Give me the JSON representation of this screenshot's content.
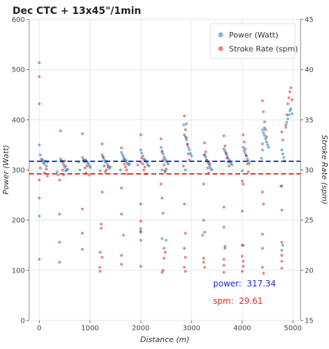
{
  "chart_data": {
    "type": "scatter",
    "title": "Dec CTC + 13x45\"/1min",
    "xlabel": "Distance (m)",
    "ylabel": "Power (Watt)",
    "y2label": "Stroke Rate (spm)",
    "xlim": [
      -200,
      5150
    ],
    "ylim": [
      0,
      600
    ],
    "y2lim": [
      15,
      45
    ],
    "xticks": [
      0,
      1000,
      2000,
      3000,
      4000,
      5000
    ],
    "yticks": [
      0,
      100,
      200,
      300,
      400,
      500,
      600
    ],
    "y2ticks": [
      15,
      20,
      25,
      30,
      35,
      40,
      45
    ],
    "grid": true,
    "legend_position": "top-right",
    "legend": [
      {
        "label": "Power (Watt)",
        "color": "#1f77b4"
      },
      {
        "label": "Stroke Rate (spm)",
        "color": "#d62728"
      }
    ],
    "hlines": [
      {
        "axis": "power",
        "value": 317.34,
        "color": "#1515d6",
        "style": "dashed"
      },
      {
        "axis": "stroke_rate",
        "value": 29.61,
        "color": "#e61414",
        "style": "dashed"
      }
    ],
    "annotations": [
      {
        "text": "power:  317.34",
        "color": "#2222ee"
      },
      {
        "text": "spm:  29.61",
        "color": "#ee2222"
      }
    ],
    "series": [
      {
        "name": "Power (Watt)",
        "axis": "left",
        "color": "#1f77b4",
        "points": [
          [
            0,
            350
          ],
          [
            0,
            208
          ],
          [
            0,
            122
          ],
          [
            20,
            330
          ],
          [
            40,
            322
          ],
          [
            60,
            318
          ],
          [
            80,
            315
          ],
          [
            100,
            312
          ],
          [
            120,
            318
          ],
          [
            140,
            308
          ],
          [
            160,
            316
          ],
          [
            420,
            322
          ],
          [
            440,
            318
          ],
          [
            460,
            315
          ],
          [
            480,
            310
          ],
          [
            500,
            305
          ],
          [
            520,
            298
          ],
          [
            540,
            300
          ],
          [
            560,
            302
          ],
          [
            350,
            296
          ],
          [
            370,
            290
          ],
          [
            850,
            325
          ],
          [
            870,
            320
          ],
          [
            890,
            316
          ],
          [
            910,
            320
          ],
          [
            930,
            318
          ],
          [
            950,
            315
          ],
          [
            970,
            312
          ],
          [
            990,
            308
          ],
          [
            1010,
            305
          ],
          [
            800,
            300
          ],
          [
            780,
            316
          ],
          [
            1240,
            330
          ],
          [
            1260,
            325
          ],
          [
            1280,
            320
          ],
          [
            1300,
            316
          ],
          [
            1320,
            318
          ],
          [
            1340,
            312
          ],
          [
            1360,
            308
          ],
          [
            1380,
            303
          ],
          [
            1400,
            306
          ],
          [
            1200,
            298
          ],
          [
            1620,
            335
          ],
          [
            1640,
            330
          ],
          [
            1660,
            326
          ],
          [
            1680,
            322
          ],
          [
            1700,
            320
          ],
          [
            1720,
            317
          ],
          [
            1740,
            313
          ],
          [
            1760,
            310
          ],
          [
            1780,
            312
          ],
          [
            1600,
            300
          ],
          [
            2000,
            340
          ],
          [
            2020,
            334
          ],
          [
            2040,
            328
          ],
          [
            2060,
            322
          ],
          [
            2080,
            320
          ],
          [
            2100,
            318
          ],
          [
            2120,
            315
          ],
          [
            2140,
            310
          ],
          [
            2160,
            308
          ],
          [
            2000,
            183
          ],
          [
            2000,
            178
          ],
          [
            1940,
            310
          ],
          [
            2400,
            345
          ],
          [
            2420,
            338
          ],
          [
            2440,
            332
          ],
          [
            2460,
            326
          ],
          [
            2480,
            322
          ],
          [
            2500,
            318
          ],
          [
            2520,
            315
          ],
          [
            2540,
            312
          ],
          [
            2420,
            300
          ],
          [
            2500,
            160
          ],
          [
            2420,
            163
          ],
          [
            2480,
            298
          ],
          [
            2860,
            370
          ],
          [
            2880,
            366
          ],
          [
            2900,
            360
          ],
          [
            2920,
            352
          ],
          [
            2940,
            345
          ],
          [
            2960,
            340
          ],
          [
            2980,
            333
          ],
          [
            3000,
            328
          ],
          [
            2850,
            390
          ],
          [
            2900,
            392
          ],
          [
            2880,
            300
          ],
          [
            3260,
            330
          ],
          [
            3280,
            326
          ],
          [
            3300,
            320
          ],
          [
            3320,
            316
          ],
          [
            3340,
            313
          ],
          [
            3360,
            308
          ],
          [
            3380,
            303
          ],
          [
            3400,
            300
          ],
          [
            3220,
            170
          ],
          [
            3250,
            330
          ],
          [
            3640,
            342
          ],
          [
            3660,
            338
          ],
          [
            3680,
            333
          ],
          [
            3700,
            329
          ],
          [
            3720,
            324
          ],
          [
            3740,
            320
          ],
          [
            3760,
            316
          ],
          [
            3780,
            313
          ],
          [
            3800,
            310
          ],
          [
            3660,
            148
          ],
          [
            4020,
            345
          ],
          [
            4040,
            338
          ],
          [
            4060,
            333
          ],
          [
            4080,
            329
          ],
          [
            4100,
            322
          ],
          [
            4120,
            318
          ],
          [
            4140,
            313
          ],
          [
            4000,
            298
          ],
          [
            4020,
            150
          ],
          [
            4400,
            380
          ],
          [
            4420,
            374
          ],
          [
            4440,
            369
          ],
          [
            4460,
            362
          ],
          [
            4480,
            356
          ],
          [
            4500,
            350
          ],
          [
            4520,
            345
          ],
          [
            4400,
            340
          ],
          [
            4380,
            323
          ],
          [
            4440,
            384
          ],
          [
            4780,
            340
          ],
          [
            4800,
            332
          ],
          [
            4820,
            325
          ],
          [
            4840,
            318
          ],
          [
            4860,
            385
          ],
          [
            4880,
            395
          ],
          [
            4900,
            402
          ],
          [
            4920,
            410
          ],
          [
            4940,
            418
          ],
          [
            4960,
            422
          ],
          [
            4980,
            412
          ],
          [
            4760,
            268
          ],
          [
            4800,
            150
          ],
          [
            4780,
            140
          ]
        ]
      },
      {
        "name": "Stroke Rate (spm)",
        "axis": "right",
        "color": "#d62728",
        "points": [
          [
            0,
            40.7
          ],
          [
            0,
            39.3
          ],
          [
            0,
            36.6
          ],
          [
            0,
            29.0
          ],
          [
            0,
            27.2
          ],
          [
            20,
            30.2
          ],
          [
            60,
            31.0
          ],
          [
            100,
            29.7
          ],
          [
            140,
            30.1
          ],
          [
            160,
            29.4
          ],
          [
            420,
            33.9
          ],
          [
            440,
            30.9
          ],
          [
            460,
            30.0
          ],
          [
            480,
            29.5
          ],
          [
            500,
            30.9
          ],
          [
            520,
            30.4
          ],
          [
            400,
            29.0
          ],
          [
            400,
            22.8
          ],
          [
            400,
            20.8
          ],
          [
            400,
            25.6
          ],
          [
            850,
            33.6
          ],
          [
            880,
            31.0
          ],
          [
            900,
            30.2
          ],
          [
            920,
            29.7
          ],
          [
            940,
            30.4
          ],
          [
            980,
            29.5
          ],
          [
            850,
            26.1
          ],
          [
            850,
            23.7
          ],
          [
            850,
            22.1
          ],
          [
            1240,
            32.6
          ],
          [
            1260,
            31.3
          ],
          [
            1280,
            30.4
          ],
          [
            1300,
            29.8
          ],
          [
            1320,
            30.0
          ],
          [
            1360,
            30.3
          ],
          [
            1240,
            27.8
          ],
          [
            1220,
            24.6
          ],
          [
            1220,
            24.2
          ],
          [
            1200,
            21.8
          ],
          [
            1190,
            20.3
          ],
          [
            1200,
            19.9
          ],
          [
            1240,
            21.3
          ],
          [
            1620,
            32.2
          ],
          [
            1660,
            31.0
          ],
          [
            1680,
            30.6
          ],
          [
            1700,
            30.3
          ],
          [
            1720,
            30.0
          ],
          [
            1740,
            29.6
          ],
          [
            1620,
            28.2
          ],
          [
            1620,
            25.6
          ],
          [
            1660,
            23.5
          ],
          [
            1620,
            20.6
          ],
          [
            1620,
            21.5
          ],
          [
            2000,
            33.5
          ],
          [
            2020,
            31.2
          ],
          [
            2040,
            30.6
          ],
          [
            2060,
            30.0
          ],
          [
            2080,
            30.3
          ],
          [
            2100,
            29.6
          ],
          [
            2000,
            30.8
          ],
          [
            2000,
            26.6
          ],
          [
            2000,
            24.9
          ],
          [
            2000,
            23.8
          ],
          [
            2000,
            23.0
          ],
          [
            2000,
            20.4
          ],
          [
            2400,
            33.1
          ],
          [
            2420,
            31.8
          ],
          [
            2440,
            31.0
          ],
          [
            2460,
            30.5
          ],
          [
            2480,
            29.8
          ],
          [
            2500,
            30.1
          ],
          [
            2400,
            28.6
          ],
          [
            2420,
            27.2
          ],
          [
            2440,
            25.7
          ],
          [
            2460,
            22.2
          ],
          [
            2480,
            21.8
          ],
          [
            2460,
            21.2
          ],
          [
            2440,
            20.0
          ],
          [
            2420,
            19.8
          ],
          [
            2860,
            35.4
          ],
          [
            2880,
            34.0
          ],
          [
            2900,
            33.2
          ],
          [
            2920,
            32.5
          ],
          [
            2940,
            31.6
          ],
          [
            2960,
            31.0
          ],
          [
            2840,
            30.4
          ],
          [
            2860,
            26.6
          ],
          [
            2880,
            23.7
          ],
          [
            2860,
            22.2
          ],
          [
            2880,
            21.3
          ],
          [
            2860,
            20.3
          ],
          [
            2880,
            19.9
          ],
          [
            3260,
            32.7
          ],
          [
            3280,
            31.8
          ],
          [
            3300,
            31.0
          ],
          [
            3320,
            30.2
          ],
          [
            3340,
            29.7
          ],
          [
            3360,
            30.6
          ],
          [
            3240,
            28.6
          ],
          [
            3240,
            25.0
          ],
          [
            3260,
            23.8
          ],
          [
            3240,
            21.2
          ],
          [
            3260,
            20.3
          ],
          [
            3240,
            20.8
          ],
          [
            3640,
            33.4
          ],
          [
            3660,
            32.4
          ],
          [
            3680,
            31.7
          ],
          [
            3700,
            31.2
          ],
          [
            3720,
            30.8
          ],
          [
            3740,
            30.4
          ],
          [
            3640,
            26.3
          ],
          [
            3640,
            24.3
          ],
          [
            3660,
            22.2
          ],
          [
            3640,
            21.1
          ],
          [
            3640,
            20.5
          ],
          [
            3640,
            19.8
          ],
          [
            4020,
            33.5
          ],
          [
            4040,
            32.8
          ],
          [
            4060,
            32.1
          ],
          [
            4080,
            31.4
          ],
          [
            4100,
            30.6
          ],
          [
            4120,
            29.8
          ],
          [
            4000,
            28.9
          ],
          [
            4020,
            28.6
          ],
          [
            4000,
            25.9
          ],
          [
            4000,
            22.5
          ],
          [
            4000,
            21.4
          ],
          [
            4020,
            20.9
          ],
          [
            4020,
            20.4
          ],
          [
            4000,
            19.9
          ],
          [
            4400,
            36.9
          ],
          [
            4420,
            35.8
          ],
          [
            4440,
            34.8
          ],
          [
            4460,
            34.0
          ],
          [
            4480,
            33.3
          ],
          [
            4400,
            32.6
          ],
          [
            4400,
            27.8
          ],
          [
            4420,
            26.6
          ],
          [
            4400,
            23.6
          ],
          [
            4400,
            22.2
          ],
          [
            4400,
            20.3
          ],
          [
            4420,
            19.7
          ],
          [
            4780,
            33.8
          ],
          [
            4800,
            33.0
          ],
          [
            4860,
            34.5
          ],
          [
            4880,
            35.5
          ],
          [
            4900,
            36.6
          ],
          [
            4920,
            37.2
          ],
          [
            4940,
            37.8
          ],
          [
            4960,
            38.2
          ],
          [
            4980,
            37.0
          ],
          [
            4780,
            28.4
          ],
          [
            4780,
            26.0
          ],
          [
            4780,
            22.8
          ],
          [
            4780,
            21.5
          ],
          [
            4780,
            20.9
          ],
          [
            4780,
            20.2
          ]
        ]
      }
    ]
  }
}
